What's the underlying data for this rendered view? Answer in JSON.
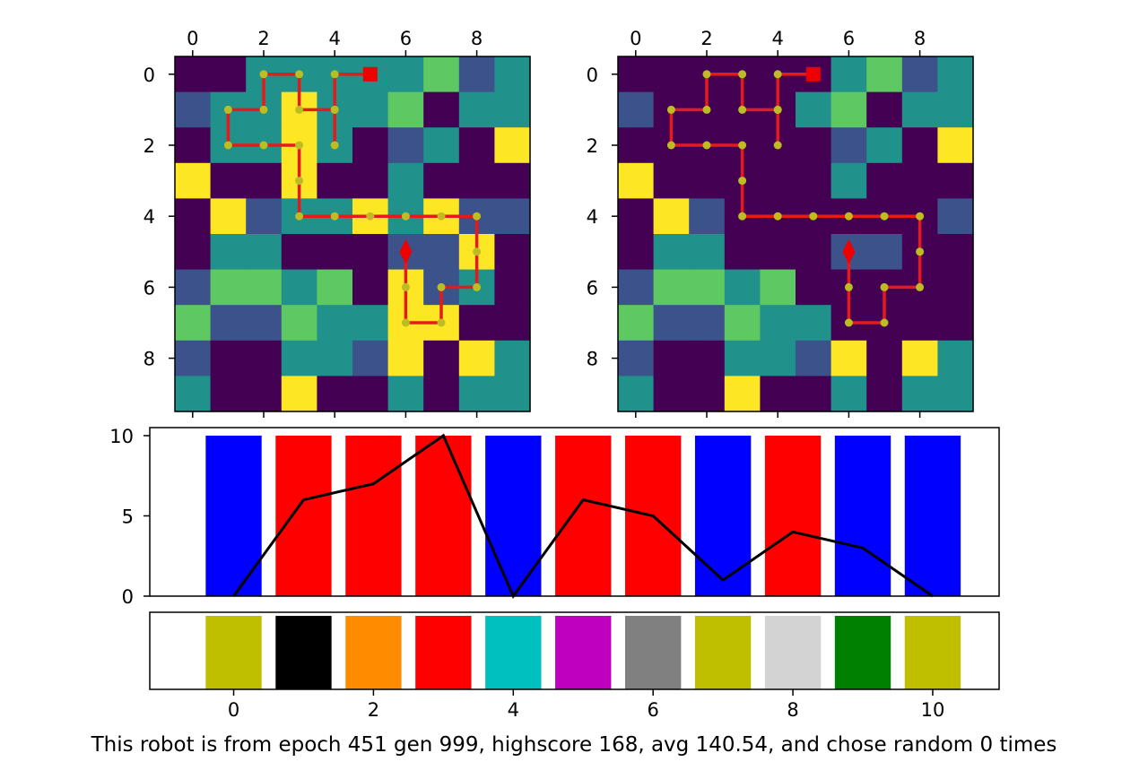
{
  "colors": {
    "viridis": [
      "#440154",
      "#3b528b",
      "#21918c",
      "#5ec962",
      "#fde725"
    ],
    "path": "#e41a1c",
    "dot": "#bcbd22",
    "marker": "#ee0000",
    "axis": "#000000"
  },
  "chart_data": [
    {
      "type": "heatmap",
      "title": "",
      "xticks": [
        "0",
        "2",
        "4",
        "6",
        "8"
      ],
      "yticks": [
        "0",
        "2",
        "4",
        "6",
        "8"
      ],
      "xtick_position": "top",
      "colormap": "viridis",
      "vmin": 0,
      "vmax": 4,
      "grid": [
        [
          0,
          0,
          2,
          2,
          2,
          2,
          2,
          3,
          1,
          2
        ],
        [
          1,
          2,
          2,
          4,
          2,
          2,
          3,
          0,
          2,
          2
        ],
        [
          0,
          2,
          2,
          4,
          2,
          0,
          1,
          2,
          0,
          4
        ],
        [
          4,
          0,
          0,
          4,
          0,
          0,
          2,
          0,
          0,
          0
        ],
        [
          0,
          4,
          1,
          2,
          2,
          4,
          2,
          4,
          1,
          1
        ],
        [
          0,
          2,
          2,
          0,
          0,
          0,
          1,
          1,
          4,
          0
        ],
        [
          1,
          3,
          3,
          2,
          3,
          0,
          4,
          1,
          2,
          0
        ],
        [
          3,
          1,
          1,
          3,
          2,
          2,
          4,
          4,
          0,
          0
        ],
        [
          1,
          0,
          0,
          2,
          2,
          1,
          4,
          0,
          4,
          2
        ],
        [
          2,
          0,
          0,
          4,
          0,
          0,
          2,
          0,
          2,
          2
        ]
      ],
      "path": [
        [
          5,
          0
        ],
        [
          4,
          0
        ],
        [
          4,
          1
        ],
        [
          4,
          2
        ],
        [
          4,
          1
        ],
        [
          3,
          1
        ],
        [
          3,
          0
        ],
        [
          2,
          0
        ],
        [
          2,
          1
        ],
        [
          1,
          1
        ],
        [
          1,
          2
        ],
        [
          2,
          2
        ],
        [
          3,
          2
        ],
        [
          3,
          3
        ],
        [
          3,
          4
        ],
        [
          4,
          4
        ],
        [
          5,
          4
        ],
        [
          6,
          4
        ],
        [
          7,
          4
        ],
        [
          8,
          4
        ],
        [
          8,
          5
        ],
        [
          8,
          6
        ],
        [
          7,
          6
        ],
        [
          7,
          7
        ],
        [
          6,
          7
        ],
        [
          6,
          6
        ],
        [
          6,
          5
        ]
      ],
      "start_marker": "square",
      "end_marker": "diamond"
    },
    {
      "type": "heatmap",
      "title": "",
      "xticks": [
        "0",
        "2",
        "4",
        "6",
        "8"
      ],
      "yticks": [
        "0",
        "2",
        "4",
        "6",
        "8"
      ],
      "xtick_position": "top",
      "colormap": "viridis",
      "vmin": 0,
      "vmax": 4,
      "grid": [
        [
          0,
          0,
          0,
          0,
          0,
          0,
          2,
          3,
          1,
          2
        ],
        [
          1,
          0,
          0,
          0,
          0,
          2,
          3,
          0,
          2,
          2
        ],
        [
          0,
          0,
          0,
          0,
          0,
          0,
          1,
          2,
          0,
          4
        ],
        [
          4,
          0,
          0,
          0,
          0,
          0,
          2,
          0,
          0,
          0
        ],
        [
          0,
          4,
          1,
          0,
          0,
          0,
          0,
          0,
          0,
          1
        ],
        [
          0,
          2,
          2,
          0,
          0,
          0,
          1,
          1,
          0,
          0
        ],
        [
          1,
          3,
          3,
          2,
          3,
          0,
          0,
          0,
          0,
          0
        ],
        [
          3,
          1,
          1,
          3,
          2,
          2,
          0,
          0,
          0,
          0
        ],
        [
          1,
          0,
          0,
          2,
          2,
          1,
          4,
          0,
          4,
          2
        ],
        [
          2,
          0,
          0,
          4,
          0,
          0,
          2,
          0,
          2,
          2
        ]
      ],
      "path": [
        [
          5,
          0
        ],
        [
          4,
          0
        ],
        [
          4,
          1
        ],
        [
          4,
          2
        ],
        [
          4,
          1
        ],
        [
          3,
          1
        ],
        [
          3,
          0
        ],
        [
          2,
          0
        ],
        [
          2,
          1
        ],
        [
          1,
          1
        ],
        [
          1,
          2
        ],
        [
          2,
          2
        ],
        [
          3,
          2
        ],
        [
          3,
          3
        ],
        [
          3,
          4
        ],
        [
          4,
          4
        ],
        [
          5,
          4
        ],
        [
          6,
          4
        ],
        [
          7,
          4
        ],
        [
          8,
          4
        ],
        [
          8,
          5
        ],
        [
          8,
          6
        ],
        [
          7,
          6
        ],
        [
          7,
          7
        ],
        [
          6,
          7
        ],
        [
          6,
          6
        ],
        [
          6,
          5
        ]
      ],
      "start_marker": "square",
      "end_marker": "diamond"
    },
    {
      "type": "bar",
      "title": "",
      "categories": [
        0,
        1,
        2,
        3,
        4,
        5,
        6,
        7,
        8,
        9,
        10
      ],
      "values": [
        10,
        10,
        10,
        10,
        10,
        10,
        10,
        10,
        10,
        10,
        10
      ],
      "bar_colors": [
        "#0000ff",
        "#ff0000",
        "#ff0000",
        "#ff0000",
        "#0000ff",
        "#ff0000",
        "#ff0000",
        "#0000ff",
        "#ff0000",
        "#0000ff",
        "#0000ff"
      ],
      "line": {
        "x": [
          0,
          1,
          2,
          3,
          4,
          5,
          6,
          7,
          8,
          9,
          10
        ],
        "y": [
          0,
          6,
          7,
          10,
          0,
          6,
          5,
          1,
          4,
          3,
          0
        ],
        "color": "#000000"
      },
      "yticks": [
        "0",
        "5",
        "10"
      ],
      "xlim": [
        -1.2,
        10.95
      ],
      "ylim": [
        0,
        10.5
      ]
    },
    {
      "type": "bar",
      "title": "",
      "categories": [
        0,
        1,
        2,
        3,
        4,
        5,
        6,
        7,
        8,
        9,
        10
      ],
      "values": [
        1,
        1,
        1,
        1,
        1,
        1,
        1,
        1,
        1,
        1,
        1
      ],
      "bar_colors": [
        "#bfbf00",
        "#000000",
        "#ff8c00",
        "#ff0000",
        "#00bfbf",
        "#bf00bf",
        "#808080",
        "#bfbf00",
        "#d3d3d3",
        "#008000",
        "#bfbf00"
      ],
      "xticks": [
        "0",
        "2",
        "4",
        "6",
        "8",
        "10"
      ],
      "xlim": [
        -1.2,
        10.95
      ],
      "ylim": [
        0,
        1
      ]
    }
  ],
  "caption": "This robot is from epoch 451 gen 999, highscore 168, avg 140.54, and chose random 0 times"
}
